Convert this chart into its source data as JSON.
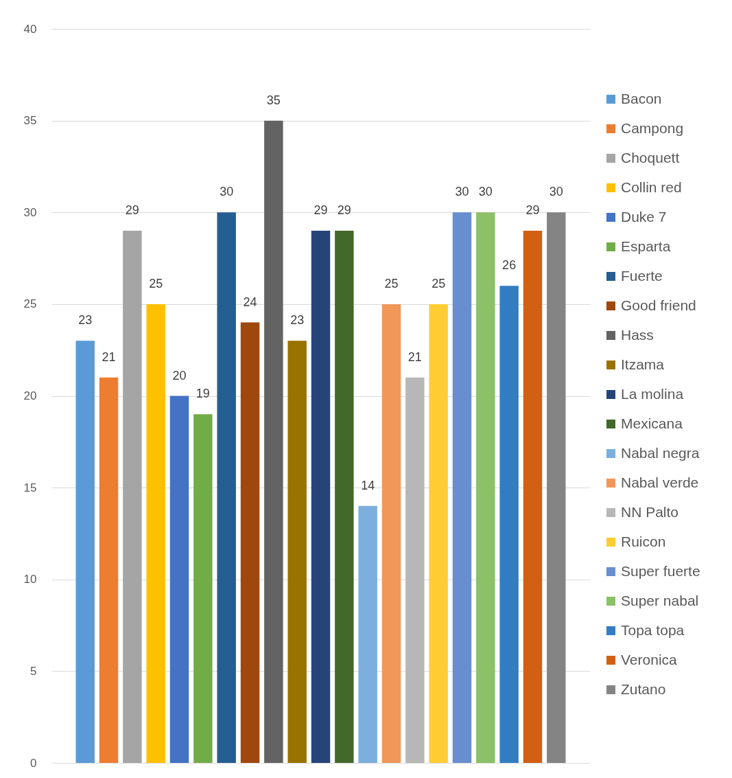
{
  "chart_data": {
    "type": "bar",
    "categories": [
      null
    ],
    "series": [
      {
        "name": "Bacon",
        "color": "#5b9bd5",
        "values": [
          23
        ]
      },
      {
        "name": "Campong",
        "color": "#ed7d31",
        "values": [
          21
        ]
      },
      {
        "name": "Choquett",
        "color": "#a5a5a5",
        "values": [
          29
        ]
      },
      {
        "name": "Collin red",
        "color": "#ffc000",
        "values": [
          25
        ]
      },
      {
        "name": "Duke 7",
        "color": "#4472c4",
        "values": [
          20
        ]
      },
      {
        "name": "Esparta",
        "color": "#70ad47",
        "values": [
          19
        ]
      },
      {
        "name": "Fuerte",
        "color": "#255e91",
        "values": [
          30
        ]
      },
      {
        "name": "Good friend",
        "color": "#9e480e",
        "values": [
          24
        ]
      },
      {
        "name": "Hass",
        "color": "#636363",
        "values": [
          35
        ]
      },
      {
        "name": "Itzama",
        "color": "#997300",
        "values": [
          23
        ]
      },
      {
        "name": "La molina",
        "color": "#264478",
        "values": [
          29
        ]
      },
      {
        "name": "Mexicana",
        "color": "#43682b",
        "values": [
          29
        ]
      },
      {
        "name": "Nabal negra",
        "color": "#7cafdd",
        "values": [
          14
        ]
      },
      {
        "name": "Nabal verde",
        "color": "#f1975a",
        "values": [
          25
        ]
      },
      {
        "name": "NN Palto",
        "color": "#b7b7b7",
        "values": [
          21
        ]
      },
      {
        "name": "Ruicon",
        "color": "#ffcd33",
        "values": [
          25
        ]
      },
      {
        "name": "Super fuerte",
        "color": "#698ed0",
        "values": [
          30
        ]
      },
      {
        "name": "Super nabal",
        "color": "#8cc168",
        "values": [
          30
        ]
      },
      {
        "name": "Topa topa",
        "color": "#327dc2",
        "values": [
          26
        ]
      },
      {
        "name": "Veronica",
        "color": "#d26012",
        "values": [
          29
        ]
      },
      {
        "name": "Zutano",
        "color": "#848484",
        "values": [
          30
        ]
      }
    ],
    "ylim": [
      0,
      40
    ],
    "yticks": [
      0,
      5,
      10,
      15,
      20,
      25,
      30,
      35,
      40
    ],
    "grid": "y",
    "legend": "right",
    "data_labels": true
  }
}
